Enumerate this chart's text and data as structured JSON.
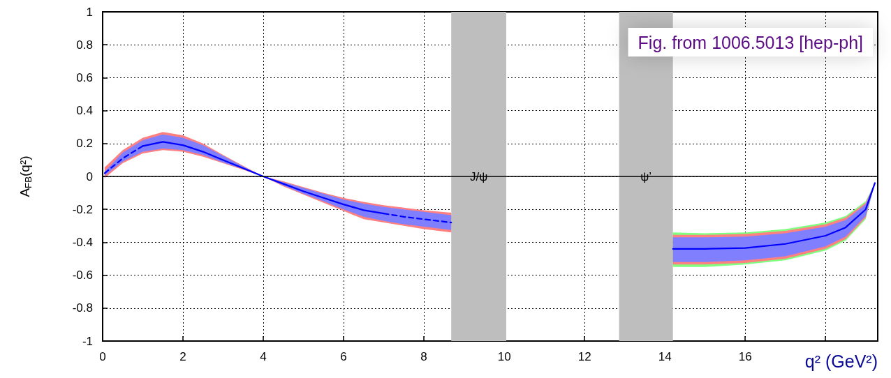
{
  "chart_data": {
    "type": "line",
    "xlabel": "q² (GeV²)",
    "ylabel": "A$_{FB}$(q²)",
    "xlim": [
      0,
      19.3
    ],
    "xticks": [
      0,
      2,
      4,
      6,
      8,
      10,
      12,
      14,
      16,
      {
        "value": 18,
        "label": null
      }
    ],
    "ylim": [
      -1,
      1
    ],
    "yticks": [
      -1,
      -0.8,
      -0.6,
      -0.4,
      -0.2,
      0,
      0.2,
      0.4,
      0.6,
      0.8,
      1
    ],
    "grid": true,
    "marker": "none",
    "annotations": [
      "Fig. from 1006.5013 [hep-ph]"
    ],
    "ref_lines": [
      {
        "axis": "y",
        "value": 0,
        "color": "#000000"
      }
    ],
    "bands": [
      {
        "axis": "x",
        "from": 8.68,
        "to": 10.05,
        "label": "J/ψ",
        "color": "#bebebe"
      },
      {
        "axis": "x",
        "from": 12.86,
        "to": 14.2,
        "label": "ψ’",
        "color": "#bebebe"
      }
    ],
    "series": [
      {
        "type": "area",
        "color": "#ff8080",
        "x": [
          0.05,
          0.5,
          1,
          1.5,
          2,
          2.5,
          3,
          3.5,
          4,
          4.5,
          5,
          5.5,
          6,
          6.5,
          7,
          7.5,
          8,
          8.68
        ],
        "values": [
          null,
          null,
          null,
          null,
          null,
          null,
          null,
          null,
          null,
          null,
          null,
          null,
          null,
          null,
          null,
          null,
          null,
          null
        ],
        "lower": [
          -0.01,
          0.08,
          0.14,
          0.16,
          0.15,
          0.12,
          0.08,
          0.04,
          0,
          -0.06,
          -0.11,
          -0.16,
          -0.21,
          -0.26,
          -0.28,
          -0.3,
          -0.32,
          -0.34
        ],
        "upper": [
          0.055,
          0.16,
          0.235,
          0.27,
          0.25,
          0.2,
          0.13,
          0.065,
          0,
          -0.03,
          -0.065,
          -0.1,
          -0.13,
          -0.155,
          -0.175,
          -0.19,
          -0.205,
          -0.22
        ]
      },
      {
        "type": "area",
        "color": "#8080ff",
        "x": [
          0.05,
          0.5,
          1,
          1.5,
          2,
          2.5,
          3,
          3.5,
          4,
          4.5,
          5,
          5.5,
          6,
          6.5,
          7,
          7.5,
          8,
          8.68
        ],
        "values": [
          null,
          null,
          null,
          null,
          null,
          null,
          null,
          null,
          null,
          null,
          null,
          null,
          null,
          null,
          null,
          null,
          null,
          null
        ],
        "lower": [
          0.005,
          0.09,
          0.15,
          0.17,
          0.16,
          0.13,
          0.085,
          0.045,
          0,
          -0.055,
          -0.105,
          -0.15,
          -0.2,
          -0.245,
          -0.27,
          -0.29,
          -0.305,
          -0.325
        ],
        "upper": [
          0.03,
          0.145,
          0.22,
          0.255,
          0.235,
          0.19,
          0.125,
          0.06,
          0,
          -0.035,
          -0.07,
          -0.105,
          -0.14,
          -0.165,
          -0.185,
          -0.2,
          -0.215,
          -0.235
        ]
      },
      {
        "type": "area",
        "color": "#80ff80",
        "x": [
          14.2,
          15,
          16,
          17,
          18,
          18.5,
          19,
          19.23
        ],
        "values": [
          null,
          null,
          null,
          null,
          null,
          null,
          null,
          null
        ],
        "lower": [
          -0.55,
          -0.55,
          -0.535,
          -0.51,
          -0.45,
          -0.39,
          -0.26,
          -0.04
        ],
        "upper": [
          -0.34,
          -0.345,
          -0.34,
          -0.32,
          -0.28,
          -0.24,
          -0.15,
          -0.04
        ]
      },
      {
        "type": "area",
        "color": "#ff8080",
        "x": [
          14.2,
          15,
          16,
          17,
          18,
          18.5,
          19,
          19.23
        ],
        "values": [
          null,
          null,
          null,
          null,
          null,
          null,
          null,
          null
        ],
        "lower": [
          -0.535,
          -0.535,
          -0.525,
          -0.5,
          -0.44,
          -0.38,
          -0.25,
          -0.04
        ],
        "upper": [
          -0.355,
          -0.355,
          -0.35,
          -0.33,
          -0.29,
          -0.25,
          -0.16,
          -0.04
        ]
      },
      {
        "type": "area",
        "color": "#8080ff",
        "x": [
          14.2,
          15,
          16,
          17,
          18,
          18.5,
          19,
          19.23
        ],
        "values": [
          null,
          null,
          null,
          null,
          null,
          null,
          null,
          null
        ],
        "lower": [
          -0.52,
          -0.52,
          -0.51,
          -0.485,
          -0.425,
          -0.365,
          -0.24,
          -0.04
        ],
        "upper": [
          -0.37,
          -0.37,
          -0.365,
          -0.345,
          -0.305,
          -0.265,
          -0.17,
          -0.04
        ]
      },
      {
        "color": "#0000ff",
        "line_style": "dashed",
        "x": [
          0.05,
          0.5,
          1
        ],
        "values": [
          0.02,
          0.11,
          0.185
        ]
      },
      {
        "color": "#0000ff",
        "line_style": "solid",
        "x": [
          1,
          1.5,
          2,
          2.5,
          3,
          3.5,
          4,
          4.5,
          5,
          5.5,
          6,
          6.5,
          7
        ],
        "values": [
          0.185,
          0.21,
          0.19,
          0.15,
          0.1,
          0.05,
          0,
          -0.045,
          -0.09,
          -0.13,
          -0.17,
          -0.205,
          -0.225
        ]
      },
      {
        "color": "#0000ff",
        "line_style": "dashed",
        "x": [
          7,
          7.5,
          8,
          8.68
        ],
        "values": [
          -0.225,
          -0.245,
          -0.26,
          -0.28
        ]
      },
      {
        "color": "#0000ff",
        "line_style": "solid",
        "x": [
          14.2,
          15,
          16,
          17,
          18,
          18.5,
          19,
          19.23
        ],
        "values": [
          -0.44,
          -0.44,
          -0.435,
          -0.41,
          -0.36,
          -0.31,
          -0.2,
          -0.04
        ]
      }
    ]
  }
}
